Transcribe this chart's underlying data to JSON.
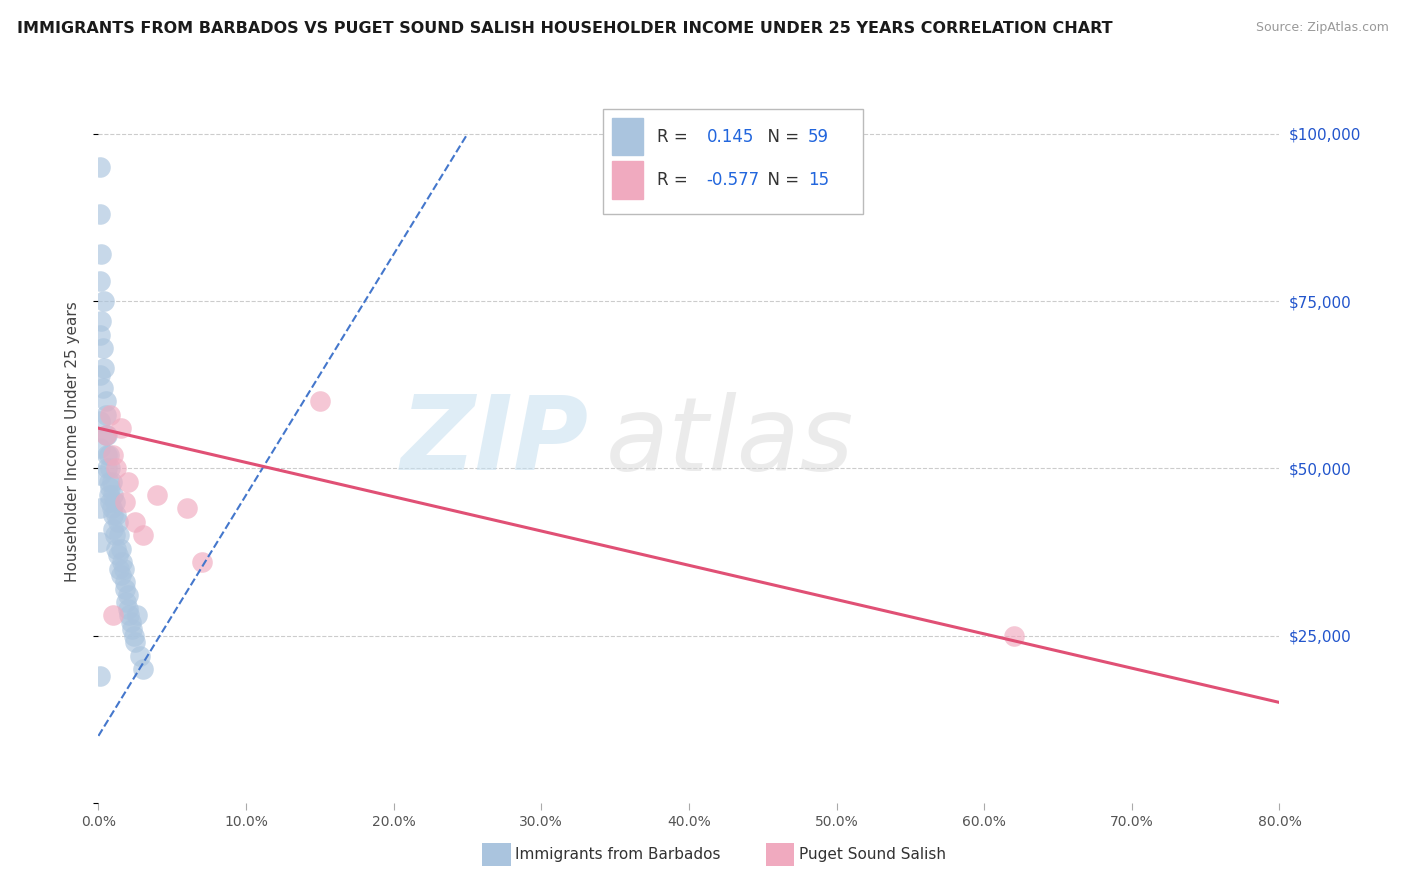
{
  "title": "IMMIGRANTS FROM BARBADOS VS PUGET SOUND SALISH HOUSEHOLDER INCOME UNDER 25 YEARS CORRELATION CHART",
  "source": "Source: ZipAtlas.com",
  "ylabel": "Householder Income Under 25 years",
  "xlim": [
    0.0,
    0.8
  ],
  "ylim": [
    0,
    108000
  ],
  "yticks": [
    0,
    25000,
    50000,
    75000,
    100000
  ],
  "xticks": [
    0.0,
    0.1,
    0.2,
    0.3,
    0.4,
    0.5,
    0.6,
    0.7,
    0.8
  ],
  "xtick_labels": [
    "0.0%",
    "10.0%",
    "20.0%",
    "30.0%",
    "40.0%",
    "50.0%",
    "60.0%",
    "70.0%",
    "80.0%"
  ],
  "blue_R": 0.145,
  "blue_N": 59,
  "pink_R": -0.577,
  "pink_N": 15,
  "blue_color": "#aac4de",
  "pink_color": "#f0aabf",
  "blue_trend_color": "#4477cc",
  "pink_trend_color": "#e05075",
  "legend_label_blue": "Immigrants from Barbados",
  "legend_label_pink": "Puget Sound Salish",
  "blue_scatter_x": [
    0.002,
    0.002,
    0.003,
    0.003,
    0.004,
    0.004,
    0.005,
    0.005,
    0.005,
    0.006,
    0.006,
    0.006,
    0.007,
    0.007,
    0.007,
    0.008,
    0.008,
    0.008,
    0.009,
    0.009,
    0.01,
    0.01,
    0.01,
    0.011,
    0.011,
    0.012,
    0.012,
    0.013,
    0.013,
    0.014,
    0.014,
    0.015,
    0.015,
    0.016,
    0.017,
    0.018,
    0.018,
    0.019,
    0.02,
    0.02,
    0.021,
    0.022,
    0.023,
    0.024,
    0.025,
    0.026,
    0.028,
    0.03,
    0.001,
    0.001,
    0.001,
    0.001,
    0.001,
    0.001,
    0.001,
    0.001,
    0.001,
    0.001,
    0.001
  ],
  "blue_scatter_y": [
    72000,
    82000,
    68000,
    62000,
    75000,
    65000,
    55000,
    58000,
    60000,
    52000,
    55000,
    50000,
    48000,
    52000,
    46000,
    50000,
    47000,
    45000,
    48000,
    44000,
    46000,
    43000,
    41000,
    45000,
    40000,
    43000,
    38000,
    42000,
    37000,
    40000,
    35000,
    38000,
    34000,
    36000,
    35000,
    33000,
    32000,
    30000,
    31000,
    29000,
    28000,
    27000,
    26000,
    25000,
    24000,
    28000,
    22000,
    20000,
    95000,
    88000,
    78000,
    70000,
    64000,
    57000,
    53000,
    49000,
    44000,
    39000,
    19000
  ],
  "pink_scatter_x": [
    0.005,
    0.008,
    0.01,
    0.012,
    0.015,
    0.018,
    0.02,
    0.025,
    0.03,
    0.04,
    0.06,
    0.07,
    0.62,
    0.01,
    0.15
  ],
  "pink_scatter_y": [
    55000,
    58000,
    52000,
    50000,
    56000,
    45000,
    48000,
    42000,
    40000,
    46000,
    44000,
    36000,
    25000,
    28000,
    60000
  ],
  "blue_trend_x0": 0.0,
  "blue_trend_x1": 0.25,
  "blue_trend_y0": 10000,
  "blue_trend_y1": 100000,
  "pink_trend_x0": 0.0,
  "pink_trend_x1": 0.8,
  "pink_trend_y0": 56000,
  "pink_trend_y1": 15000
}
